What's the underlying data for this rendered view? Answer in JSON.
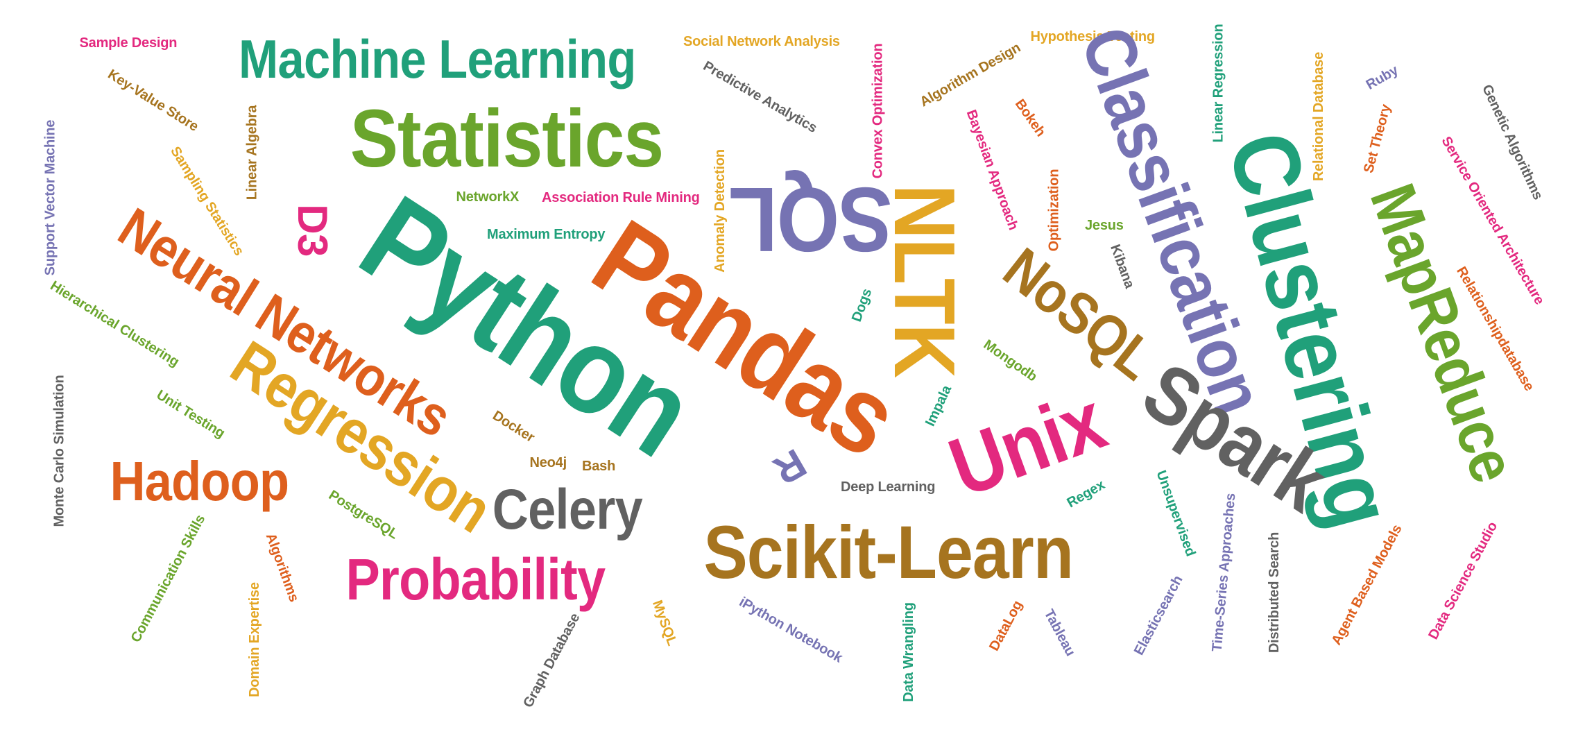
{
  "colors": {
    "green": "#20a07a",
    "olive": "#6aa52c",
    "orange": "#de5f1d",
    "purple": "#7673b3",
    "gold": "#e3a624",
    "magenta": "#e3297f",
    "gray": "#616161",
    "brown": "#a6741f",
    "lime": "#6aad2d",
    "background": "#ffffff"
  },
  "words": [
    {
      "key": "sample-design",
      "text": "Sample Design",
      "color": "magenta"
    },
    {
      "key": "machine-learning",
      "text": "Machine Learning",
      "color": "green"
    },
    {
      "key": "social-network-analysis",
      "text": "Social Network Analysis",
      "color": "gold"
    },
    {
      "key": "hypothesis-testing",
      "text": "Hypothesis Testing",
      "color": "gold"
    },
    {
      "key": "key-value-store",
      "text": "Key-Value Store",
      "color": "brown"
    },
    {
      "key": "statistics",
      "text": "Statistics",
      "color": "olive"
    },
    {
      "key": "predictive-analytics",
      "text": "Predictive Analytics",
      "color": "gray"
    },
    {
      "key": "convex-optimization",
      "text": "Convex Optimization",
      "color": "magenta"
    },
    {
      "key": "algorithm-design",
      "text": "Algorithm Design",
      "color": "brown"
    },
    {
      "key": "linear-regression",
      "text": "Linear Regression",
      "color": "green"
    },
    {
      "key": "ruby",
      "text": "Ruby",
      "color": "purple"
    },
    {
      "key": "genetic-algorithms",
      "text": "Genetic Algorithms",
      "color": "gray"
    },
    {
      "key": "support-vector-machine",
      "text": "Support Vector Machine",
      "color": "purple"
    },
    {
      "key": "linear-algebra",
      "text": "Linear Algebra",
      "color": "brown"
    },
    {
      "key": "sampling-statistics",
      "text": "Sampling Statistics",
      "color": "gold"
    },
    {
      "key": "d3",
      "text": "D3",
      "color": "magenta"
    },
    {
      "key": "sql",
      "text": "SQL",
      "color": "purple"
    },
    {
      "key": "bayesian-approach",
      "text": "Bayesian Approach",
      "color": "magenta"
    },
    {
      "key": "bokeh",
      "text": "Bokeh",
      "color": "orange"
    },
    {
      "key": "classification",
      "text": "Classification",
      "color": "purple"
    },
    {
      "key": "relational-database",
      "text": "Relational Database",
      "color": "gold"
    },
    {
      "key": "set-theory",
      "text": "Set Theory",
      "color": "orange"
    },
    {
      "key": "service-oriented-architecture",
      "text": "Service Oriented Architecture",
      "color": "magenta"
    },
    {
      "key": "neural-networks",
      "text": "Neural Networks",
      "color": "orange"
    },
    {
      "key": "networkx",
      "text": "NetworkX",
      "color": "olive"
    },
    {
      "key": "association-rule-mining",
      "text": "Association Rule Mining",
      "color": "magenta"
    },
    {
      "key": "python",
      "text": "Python",
      "color": "green"
    },
    {
      "key": "anomaly-detection",
      "text": "Anomaly Detection",
      "color": "gold"
    },
    {
      "key": "nltk",
      "text": "NLTK",
      "color": "gold"
    },
    {
      "key": "optimization",
      "text": "Optimization",
      "color": "orange"
    },
    {
      "key": "clustering",
      "text": "Clustering",
      "color": "green"
    },
    {
      "key": "mapreduce",
      "text": "MapReduce",
      "color": "olive"
    },
    {
      "key": "maximum-entropy",
      "text": "Maximum Entropy",
      "color": "green"
    },
    {
      "key": "jesus",
      "text": "Jesus",
      "color": "olive"
    },
    {
      "key": "hierarchical-clustering",
      "text": "Hierarchical Clustering",
      "color": "olive"
    },
    {
      "key": "pandas",
      "text": "Pandas",
      "color": "orange"
    },
    {
      "key": "kibana",
      "text": "Kibana",
      "color": "gray"
    },
    {
      "key": "relationshipdatabase",
      "text": "Relationshipdatabase",
      "color": "orange"
    },
    {
      "key": "dogs",
      "text": "Dogs",
      "color": "green"
    },
    {
      "key": "nosql",
      "text": "NoSQL",
      "color": "brown"
    },
    {
      "key": "monte-carlo-simulation",
      "text": "Monte Carlo Simulation",
      "color": "gray"
    },
    {
      "key": "regression",
      "text": "Regression",
      "color": "gold"
    },
    {
      "key": "mongodb",
      "text": "Mongodb",
      "color": "olive"
    },
    {
      "key": "unit-testing",
      "text": "Unit Testing",
      "color": "olive"
    },
    {
      "key": "impala",
      "text": "Impala",
      "color": "green"
    },
    {
      "key": "spark",
      "text": "Spark",
      "color": "gray"
    },
    {
      "key": "docker",
      "text": "Docker",
      "color": "brown"
    },
    {
      "key": "unix",
      "text": "Unix",
      "color": "magenta"
    },
    {
      "key": "hadoop",
      "text": "Hadoop",
      "color": "orange"
    },
    {
      "key": "r",
      "text": "R",
      "color": "purple"
    },
    {
      "key": "neo4j",
      "text": "Neo4j",
      "color": "brown"
    },
    {
      "key": "bash",
      "text": "Bash",
      "color": "brown"
    },
    {
      "key": "deep-learning",
      "text": "Deep Learning",
      "color": "gray"
    },
    {
      "key": "regex",
      "text": "Regex",
      "color": "green"
    },
    {
      "key": "unsupervised",
      "text": "Unsupervised",
      "color": "green"
    },
    {
      "key": "celery",
      "text": "Celery",
      "color": "gray"
    },
    {
      "key": "postgresql",
      "text": "PostgreSQL",
      "color": "olive"
    },
    {
      "key": "communication-skills",
      "text": "Communication Skills",
      "color": "olive"
    },
    {
      "key": "scikit-learn",
      "text": "Scikit-Learn",
      "color": "brown"
    },
    {
      "key": "time-series-approaches",
      "text": "Time-Series Approaches",
      "color": "purple"
    },
    {
      "key": "agent-based-models",
      "text": "Agent Based Models",
      "color": "orange"
    },
    {
      "key": "data-science-studio",
      "text": "Data Science Studio",
      "color": "magenta"
    },
    {
      "key": "distributed-search",
      "text": "Distributed Search",
      "color": "gray"
    },
    {
      "key": "algorithms",
      "text": "Algorithms",
      "color": "orange"
    },
    {
      "key": "probability",
      "text": "Probability",
      "color": "magenta"
    },
    {
      "key": "domain-expertise",
      "text": "Domain Expertise",
      "color": "gold"
    },
    {
      "key": "graph-database",
      "text": "Graph Database",
      "color": "gray"
    },
    {
      "key": "mysql",
      "text": "MySQL",
      "color": "gold"
    },
    {
      "key": "ipython-notebook",
      "text": "iPython Notebook",
      "color": "purple"
    },
    {
      "key": "data-wrangling",
      "text": "Data Wrangling",
      "color": "green"
    },
    {
      "key": "datalog",
      "text": "DataLog",
      "color": "orange"
    },
    {
      "key": "tableau",
      "text": "Tableau",
      "color": "purple"
    },
    {
      "key": "elasticsearch",
      "text": "Elasticsearch",
      "color": "purple"
    }
  ]
}
